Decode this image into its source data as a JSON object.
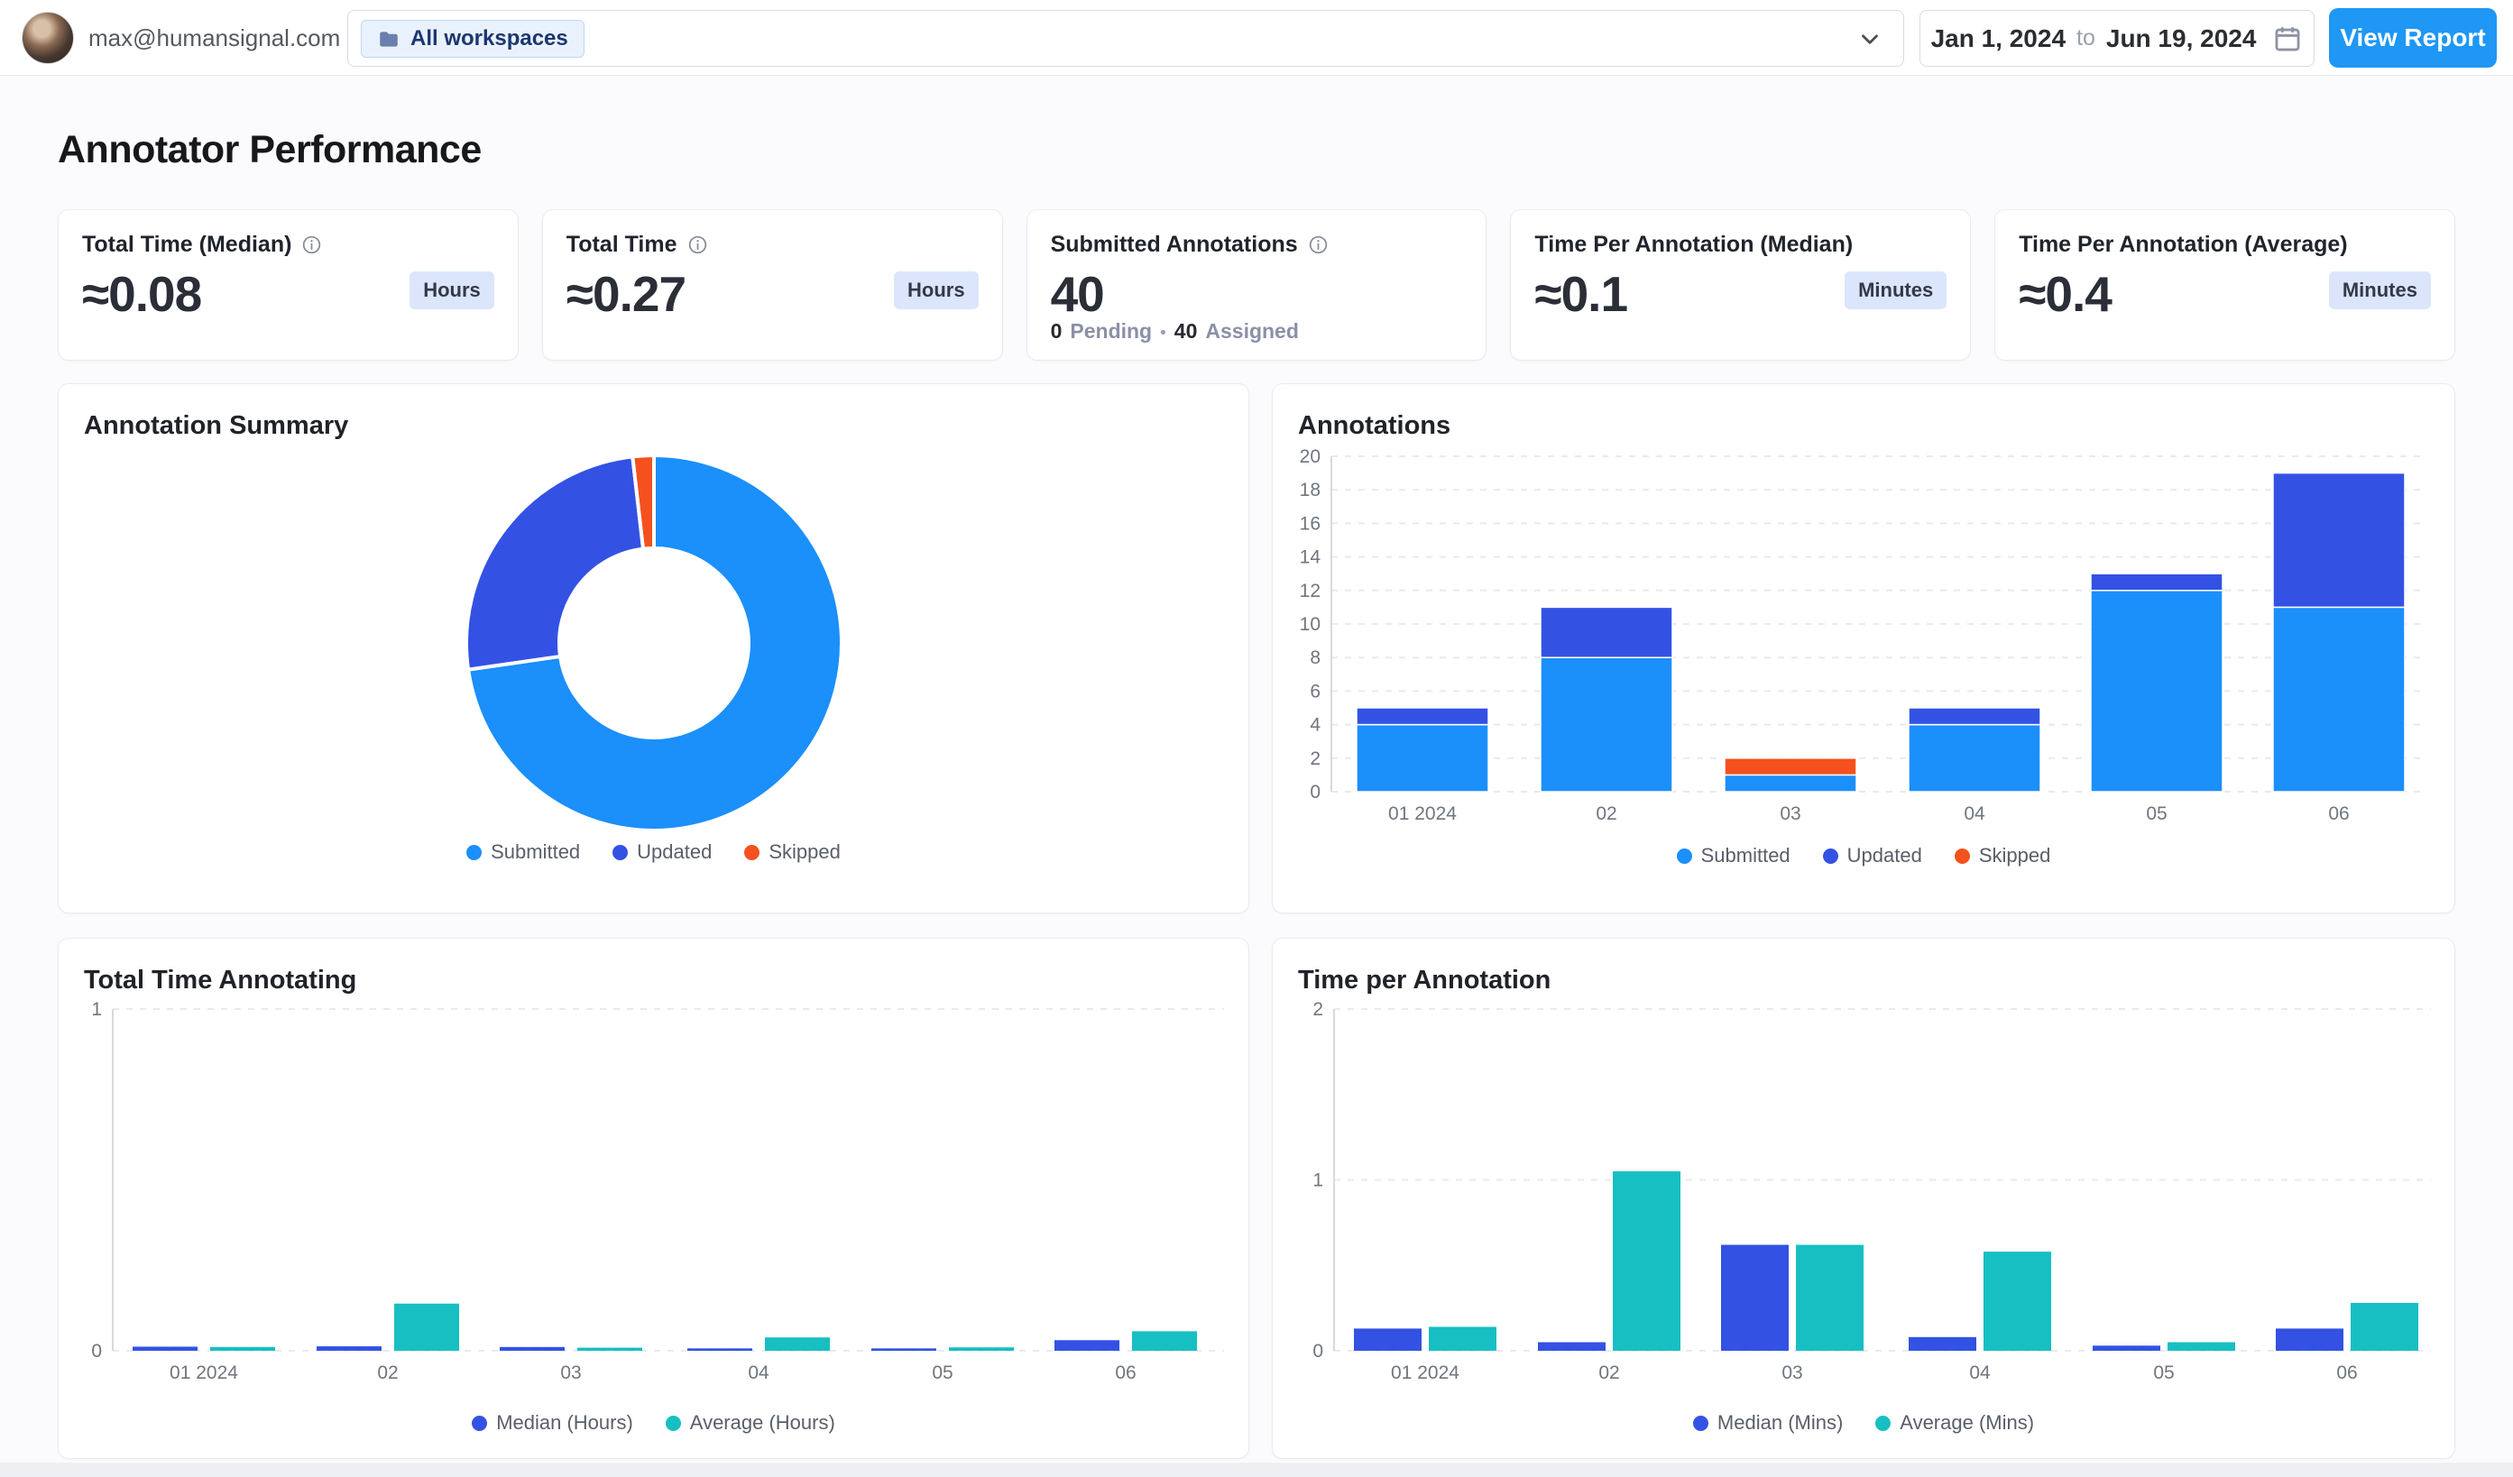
{
  "header": {
    "email": "max@humansignal.com",
    "workspace_filter": {
      "selected": "All workspaces"
    },
    "date_range": {
      "start": "Jan 1, 2024",
      "separator": "to",
      "end": "Jun 19, 2024"
    },
    "view_report_label": "View Report"
  },
  "page_title": "Annotator Performance",
  "stat_cards": [
    {
      "label": "Total Time (Median)",
      "value": "≈0.08",
      "unit": "Hours"
    },
    {
      "label": "Total Time",
      "value": "≈0.27",
      "unit": "Hours"
    },
    {
      "label": "Submitted Annotations",
      "value": "40",
      "footer": {
        "pending_value": "0",
        "pending_label": "Pending",
        "separator": "•",
        "assigned_value": "40",
        "assigned_label": "Assigned"
      }
    },
    {
      "label": "Time Per Annotation (Median)",
      "value": "≈0.1",
      "unit": "Minutes"
    },
    {
      "label": "Time Per Annotation (Average)",
      "value": "≈0.4",
      "unit": "Minutes"
    }
  ],
  "colors": {
    "accent_blue": "#1e97f5",
    "submitted": "#1b8ffa",
    "updated": "#3352e3",
    "skipped": "#f4511e",
    "teal": "#17bfc2",
    "badge_bg": "#dbe5fc",
    "grid": "#e8eaee",
    "axis": "#d7dade"
  },
  "chart_data": [
    {
      "id": "annotation_summary",
      "type": "pie",
      "title": "Annotation Summary",
      "labels": [
        "Submitted",
        "Updated",
        "Skipped"
      ],
      "values": [
        40,
        14,
        1
      ],
      "colors": [
        "#1b8ffa",
        "#3352e3",
        "#f4511e"
      ],
      "donut_inner_ratio": 0.5,
      "legend_position": "bottom"
    },
    {
      "id": "annotations",
      "type": "bar",
      "stacked": true,
      "title": "Annotations",
      "categories": [
        "01 2024",
        "02",
        "03",
        "04",
        "05",
        "06"
      ],
      "series": [
        {
          "name": "Submitted",
          "values": [
            4,
            8,
            1,
            4,
            12,
            11
          ],
          "color": "#1b8ffa"
        },
        {
          "name": "Updated",
          "values": [
            1,
            3,
            0,
            1,
            1,
            8
          ],
          "color": "#3352e3"
        },
        {
          "name": "Skipped",
          "values": [
            0,
            0,
            1,
            0,
            0,
            0
          ],
          "color": "#f4511e"
        }
      ],
      "ylim": [
        0,
        20
      ],
      "yticks": [
        0,
        2,
        4,
        6,
        8,
        10,
        12,
        14,
        16,
        18,
        20
      ],
      "grid": "dashed-horizontal",
      "legend_position": "bottom"
    },
    {
      "id": "total_time_annotating",
      "type": "bar",
      "stacked": false,
      "title": "Total Time Annotating",
      "categories": [
        "01 2024",
        "02",
        "03",
        "04",
        "05",
        "06"
      ],
      "series": [
        {
          "name": "Median (Hours)",
          "values": [
            0.012,
            0.013,
            0.011,
            0.007,
            0.007,
            0.031
          ],
          "color": "#3352e3"
        },
        {
          "name": "Average (Hours)",
          "values": [
            0.011,
            0.138,
            0.009,
            0.039,
            0.01,
            0.057
          ],
          "color": "#17bfc2"
        }
      ],
      "ylim": [
        0,
        1
      ],
      "yticks": [
        0,
        1
      ],
      "grid": "dashed-horizontal",
      "legend_position": "bottom"
    },
    {
      "id": "time_per_annotation",
      "type": "bar",
      "stacked": false,
      "title": "Time per Annotation",
      "categories": [
        "01 2024",
        "02",
        "03",
        "04",
        "05",
        "06"
      ],
      "series": [
        {
          "name": "Median (Mins)",
          "values": [
            0.13,
            0.05,
            0.62,
            0.08,
            0.03,
            0.13
          ],
          "color": "#3352e3"
        },
        {
          "name": "Average (Mins)",
          "values": [
            0.14,
            1.05,
            0.62,
            0.58,
            0.05,
            0.28
          ],
          "color": "#17bfc2"
        }
      ],
      "ylim": [
        0,
        2
      ],
      "yticks": [
        0,
        1,
        2
      ],
      "grid": "dashed-horizontal",
      "legend_position": "bottom"
    }
  ]
}
